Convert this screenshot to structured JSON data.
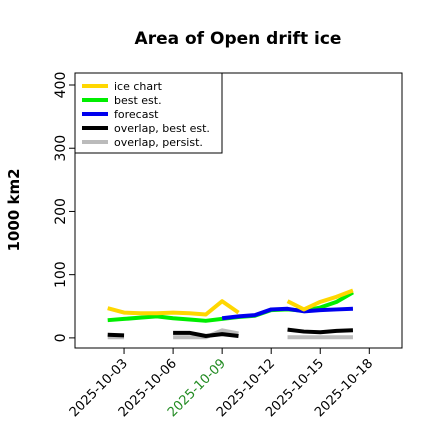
{
  "chart_data": {
    "type": "line",
    "title": "Area of Open drift ice",
    "y_label": "1000 km2",
    "x": [
      "2025-10-02",
      "2025-10-03",
      "2025-10-04",
      "2025-10-05",
      "2025-10-06",
      "2025-10-07",
      "2025-10-08",
      "2025-10-09",
      "2025-10-10",
      "2025-10-11",
      "2025-10-12",
      "2025-10-13",
      "2025-10-14",
      "2025-10-15",
      "2025-10-16",
      "2025-10-17"
    ],
    "series": [
      {
        "name": "ice chart",
        "color": "#ffd700",
        "values": [
          47,
          40,
          39,
          39,
          40,
          39,
          37,
          58,
          40,
          null,
          null,
          58,
          45,
          57,
          65,
          75
        ]
      },
      {
        "name": "best est.",
        "color": "#00ee00",
        "values": [
          28,
          30,
          32,
          34,
          31,
          29,
          27,
          30,
          33,
          35,
          44,
          45,
          43,
          48,
          57,
          72
        ]
      },
      {
        "name": "forecast",
        "color": "#0000ee",
        "values": [
          null,
          null,
          null,
          null,
          null,
          null,
          null,
          31,
          34,
          36,
          45,
          46,
          42,
          44,
          45,
          46
        ]
      },
      {
        "name": "overlap, best est.",
        "color": "#000000",
        "values": [
          5,
          4,
          null,
          null,
          8,
          8,
          3,
          6,
          3,
          null,
          null,
          13,
          10,
          9,
          11,
          12
        ]
      },
      {
        "name": "overlap, persist.",
        "color": "#bbbbbb",
        "values": [
          1,
          1,
          null,
          null,
          1,
          1,
          1,
          12,
          7,
          null,
          null,
          1,
          1,
          1,
          1,
          1
        ]
      }
    ],
    "xlim": [
      "2025-09-30",
      "2025-10-20"
    ],
    "xticks": [
      "2025-10-03",
      "2025-10-06",
      "2025-10-09",
      "2025-10-12",
      "2025-10-15",
      "2025-10-18"
    ],
    "xtick_colors": [
      "#000000",
      "#000000",
      "#228b22",
      "#000000",
      "#000000",
      "#000000"
    ],
    "ylim": [
      -16,
      419
    ],
    "yticks": [
      0,
      100,
      200,
      300,
      400
    ],
    "legend": "upper left",
    "grid": false
  }
}
